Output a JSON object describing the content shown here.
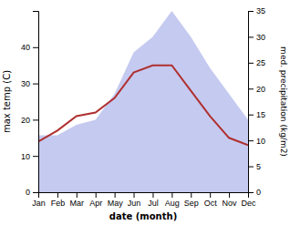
{
  "chart_data": {
    "type": "line",
    "xlabel": "date (month)",
    "ylabel": "max temp (C)",
    "y2label": "med. precipitation (kg/m2)",
    "categories": [
      "Jan",
      "Feb",
      "Mar",
      "Apr",
      "May",
      "Jun",
      "Jul",
      "Aug",
      "Sep",
      "Oct",
      "Nov",
      "Dec"
    ],
    "series": [
      {
        "type": "area",
        "axis": "y2",
        "color": "#c5caf0",
        "values": [
          11,
          11,
          13,
          14,
          19,
          27,
          30,
          35,
          30,
          24,
          19,
          14
        ]
      },
      {
        "type": "line",
        "color": "#b03030",
        "values": [
          14,
          17,
          21,
          22,
          26,
          33,
          35,
          35,
          28,
          21,
          15,
          13
        ]
      }
    ],
    "ylim": [
      0,
      50
    ],
    "yticks": [
      0,
      10,
      20,
      30,
      40
    ],
    "y2lim": [
      0,
      35
    ],
    "y2ticks": [
      0,
      5,
      10,
      15,
      20,
      25,
      30,
      35
    ]
  }
}
